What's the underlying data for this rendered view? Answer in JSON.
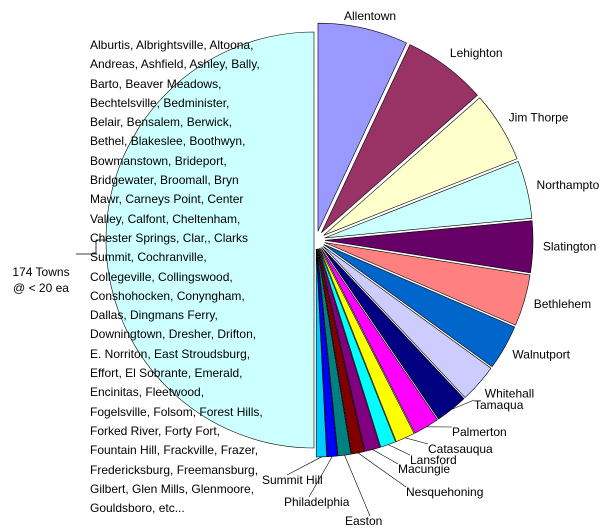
{
  "chart_data": {
    "type": "pie",
    "categories": [
      "Allentown",
      "Lehighton",
      "Jim Thorpe",
      "Northampton",
      "Slatington",
      "Bethlehem",
      "Walnutport",
      "Whitehall",
      "Tamaqua",
      "Palmerton",
      "Catasauqua",
      "Lansford",
      "Macungie",
      "Nesquehoning",
      "Easton",
      "Philadelphia",
      "Summit Hill",
      "174 Towns @ < 20 ea"
    ],
    "values": [
      7,
      6.5,
      5.5,
      4.5,
      4,
      4,
      3.5,
      3,
      2.5,
      2,
      1.5,
      1.2,
      1.2,
      1,
      1,
      0.8,
      0.8,
      50
    ],
    "colors": [
      "#9999ff",
      "#993366",
      "#ffffcc",
      "#ccffff",
      "#660066",
      "#ff8080",
      "#0066cc",
      "#ccccff",
      "#000080",
      "#ff00ff",
      "#ffff00",
      "#00ffff",
      "#800080",
      "#800000",
      "#008080",
      "#0000ff",
      "#00ccff",
      "#ccffff"
    ],
    "annotation_lines": [
      "Alburtis, Albrightsville, Altoona,",
      "Andreas, Ashfield, Ashley, Bally,",
      "Barto, Beaver Meadows,",
      "Bechtelsville, Bedminister,",
      "Belair, Bensalem, Berwick,",
      "Bethel, Blakeslee, Boothwyn,",
      "Bowmanstown, Brideport,",
      "Bridgewater, Broomall, Bryn",
      "Mawr, Carneys Point, Center",
      "Valley, Calfont, Cheltenham,",
      "Chester Springs, Clar,, Clarks",
      "Summit, Cochranville,",
      "Collegeville, Collingswood,",
      "Conshohocken, Conyngham,",
      "Dallas, Dingmans Ferry,",
      "Downingtown, Dresher, Drifton,",
      "E. Norriton, East Stroudsburg,",
      "Effort, El Sobrante, Emerald,",
      "Encinitas, Fleetwood,",
      "Fogelsville, Folsom, Forest Hills,",
      "Forked River, Forty Fort,",
      "Fountain Hill, Frackville, Frazer,",
      "Fredericksburg, Freemansburg,",
      "Gilbert, Glen Mills, Glenmoore,",
      "Gouldsboro, etc..."
    ]
  }
}
